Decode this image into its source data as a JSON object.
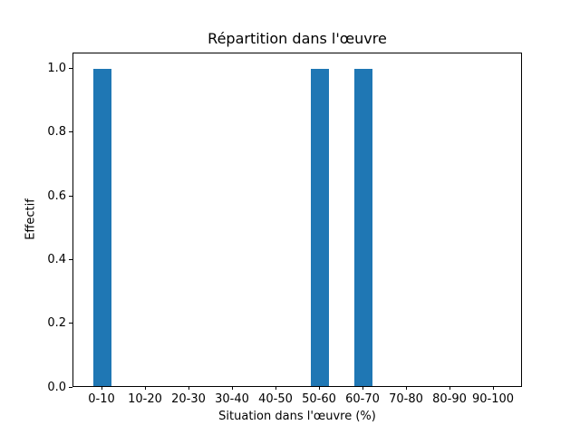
{
  "chart_data": {
    "type": "bar",
    "title": "Répartition dans l'œuvre",
    "xlabel": "Situation dans l'œuvre (%)",
    "ylabel": "Effectif",
    "categories": [
      "0-10",
      "10-20",
      "20-30",
      "30-40",
      "40-50",
      "50-60",
      "60-70",
      "70-80",
      "80-90",
      "90-100"
    ],
    "values": [
      1,
      0,
      0,
      0,
      0,
      1,
      1,
      0,
      0,
      0
    ],
    "yticks": [
      0.0,
      0.2,
      0.4,
      0.6,
      0.8,
      1.0
    ],
    "ytick_labels": [
      "0.0",
      "0.2",
      "0.4",
      "0.6",
      "0.8",
      "1.0"
    ],
    "ylim": [
      0,
      1.05
    ],
    "bar_color": "#1f77b4",
    "background_color": "#ffffff",
    "grid": false,
    "legend": "none"
  }
}
